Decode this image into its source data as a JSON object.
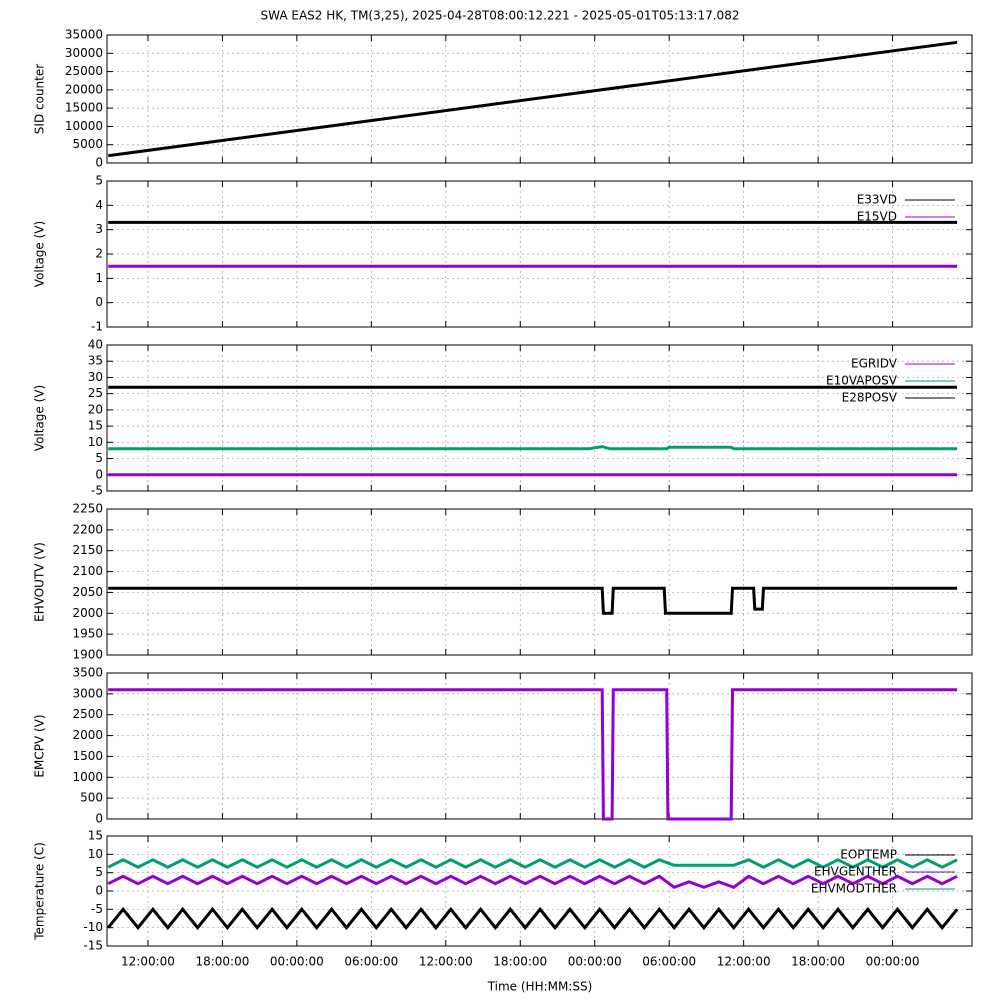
{
  "title": "SWA EAS2 HK, TM(3,25),  2025-04-28T08:00:12.221 - 2025-05-01T05:13:17.082",
  "x_axis": {
    "label": "Time (HH:MM:SS)",
    "xlim": [
      0.7,
      70.4
    ],
    "xticks": [
      {
        "value": 4,
        "label": "12:00:00"
      },
      {
        "value": 10,
        "label": "18:00:00"
      },
      {
        "value": 16,
        "label": "00:00:00"
      },
      {
        "value": 22,
        "label": "06:00:00"
      },
      {
        "value": 28,
        "label": "12:00:00"
      },
      {
        "value": 34,
        "label": "18:00:00"
      },
      {
        "value": 40,
        "label": "00:00:00"
      },
      {
        "value": 46,
        "label": "06:00:00"
      },
      {
        "value": 52,
        "label": "12:00:00"
      },
      {
        "value": 58,
        "label": "18:00:00"
      },
      {
        "value": 64,
        "label": "00:00:00"
      }
    ]
  },
  "chart_data": [
    {
      "type": "line",
      "ylabel": "SID counter",
      "ylim": [
        0,
        35000
      ],
      "yticks": [
        0,
        5000,
        10000,
        15000,
        20000,
        25000,
        30000,
        35000
      ],
      "grid": true,
      "x": [
        0.8,
        69.2
      ],
      "series": [
        {
          "color": "#000000",
          "values": [
            2000,
            33000
          ]
        }
      ]
    },
    {
      "type": "line",
      "ylabel": "Voltage (V)",
      "ylim": [
        -1,
        5
      ],
      "yticks": [
        -1,
        0,
        1,
        2,
        3,
        4,
        5
      ],
      "grid": true,
      "legend": "top-right",
      "x": [
        0.8,
        69.2
      ],
      "series": [
        {
          "name": "E33VD",
          "color": "#000000",
          "values": [
            3.3,
            3.3
          ]
        },
        {
          "name": "E15VD",
          "color": "#9400d3",
          "values": [
            1.5,
            1.5
          ]
        }
      ]
    },
    {
      "type": "line",
      "ylabel": "Voltage (V)",
      "ylim": [
        -5,
        40
      ],
      "yticks": [
        -5,
        0,
        5,
        10,
        15,
        20,
        25,
        30,
        35,
        40
      ],
      "grid": true,
      "legend": "top-right",
      "x": [
        0.8,
        39.5,
        40.6,
        41.2,
        45.8,
        46.0,
        51.0,
        51.2,
        69.2
      ],
      "series": [
        {
          "name": "EGRIDV",
          "color": "#9400d3",
          "values": [
            0,
            0,
            0,
            0,
            0,
            0,
            0,
            0,
            0
          ]
        },
        {
          "name": "E10VAPOSV",
          "color": "#009e73",
          "values": [
            8,
            8,
            8.7,
            8,
            8,
            8.5,
            8.5,
            8,
            8
          ]
        },
        {
          "name": "E28POSV",
          "color": "#000000",
          "values": [
            27,
            27,
            27,
            27,
            27,
            27,
            27,
            27,
            27
          ]
        }
      ]
    },
    {
      "type": "line",
      "ylabel": "EHVOUTV (V)",
      "ylim": [
        1900,
        2250
      ],
      "yticks": [
        1900,
        1950,
        2000,
        2050,
        2100,
        2150,
        2200,
        2250
      ],
      "grid": true,
      "x": [
        0.8,
        40.6,
        40.7,
        41.4,
        41.5,
        45.6,
        45.7,
        51.0,
        51.1,
        52.8,
        52.9,
        53.5,
        53.6,
        69.2
      ],
      "series": [
        {
          "color": "#000000",
          "values": [
            2060,
            2060,
            2000,
            2000,
            2060,
            2060,
            2000,
            2000,
            2060,
            2060,
            2010,
            2010,
            2060,
            2060
          ]
        }
      ]
    },
    {
      "type": "line",
      "ylabel": "EMCPV (V)",
      "ylim": [
        0,
        3500
      ],
      "yticks": [
        0,
        500,
        1000,
        1500,
        2000,
        2500,
        3000,
        3500
      ],
      "grid": true,
      "x": [
        0.8,
        40.6,
        40.7,
        41.4,
        41.5,
        45.8,
        45.9,
        51.0,
        51.1,
        69.2
      ],
      "series": [
        {
          "color": "#9400d3",
          "values": [
            3100,
            3100,
            0,
            0,
            3100,
            3100,
            0,
            0,
            3100,
            3100
          ]
        }
      ]
    },
    {
      "type": "line",
      "ylabel": "Temperature (C)",
      "ylim": [
        -15,
        15
      ],
      "yticks": [
        -15,
        -10,
        -5,
        0,
        5,
        10,
        15
      ],
      "grid": true,
      "legend": "top-right",
      "x": [
        0.8,
        2,
        3.2,
        4.4,
        5.6,
        6.8,
        8,
        9.2,
        10.4,
        11.6,
        12.8,
        14,
        15.2,
        16.4,
        17.6,
        18.8,
        20,
        21.2,
        22.4,
        23.6,
        24.8,
        26,
        27.2,
        28.4,
        29.6,
        30.8,
        32,
        33.2,
        34.4,
        35.6,
        36.8,
        38,
        39.2,
        40.4,
        41.6,
        42.8,
        44,
        45.2,
        46.4,
        47.6,
        48.8,
        50,
        51.2,
        52.4,
        53.6,
        54.8,
        56,
        57.2,
        58.4,
        59.6,
        60.8,
        62,
        63.2,
        64.4,
        65.6,
        66.8,
        68,
        69.2
      ],
      "series": [
        {
          "name": "EOPTEMP",
          "color": "#000000",
          "values": [
            -10,
            -5,
            -10,
            -5,
            -10,
            -5,
            -10,
            -5,
            -10,
            -5,
            -10,
            -5,
            -10,
            -5,
            -10,
            -5,
            -10,
            -5,
            -10,
            -5,
            -10,
            -5,
            -10,
            -5,
            -10,
            -5,
            -10,
            -5,
            -10,
            -5,
            -10,
            -5,
            -10,
            -5,
            -10,
            -5,
            -10,
            -5,
            -10,
            -5,
            -10,
            -5,
            -10,
            -5,
            -10,
            -5,
            -10,
            -5,
            -10,
            -5,
            -10,
            -5,
            -10,
            -5,
            -10,
            -5,
            -10,
            -5
          ]
        },
        {
          "name": "EHVGENTHER",
          "color": "#9400d3",
          "values": [
            2,
            4,
            2,
            4,
            2,
            4,
            2,
            4,
            2,
            4,
            2,
            4,
            2,
            4,
            2,
            4,
            2,
            4,
            2,
            4,
            2,
            4,
            2,
            4,
            2,
            4,
            2,
            4,
            2,
            4,
            2,
            4,
            2,
            4,
            2,
            4,
            2,
            4,
            1,
            2.5,
            1,
            2.5,
            1,
            4,
            2,
            4,
            2,
            4,
            2,
            4,
            2,
            4,
            2,
            4,
            2,
            4,
            2,
            4
          ]
        },
        {
          "name": "EHVMODTHER",
          "color": "#009e73",
          "values": [
            6.5,
            8.5,
            6.5,
            8.5,
            6.5,
            8.5,
            6.5,
            8.5,
            6.5,
            8.5,
            6.5,
            8.5,
            6.5,
            8.5,
            6.5,
            8.5,
            6.5,
            8.5,
            6.5,
            8.5,
            6.5,
            8.5,
            6.5,
            8.5,
            6.5,
            8.5,
            6.5,
            8.5,
            6.5,
            8.5,
            6.5,
            8.5,
            6.5,
            8.5,
            6.5,
            8.5,
            6.5,
            8.5,
            7,
            7,
            7,
            7,
            7,
            8.5,
            6.5,
            8.5,
            6.5,
            8.5,
            6.5,
            8.5,
            6.5,
            8.5,
            6.5,
            8.5,
            6.5,
            8.5,
            6.5,
            8.5
          ]
        }
      ]
    }
  ]
}
